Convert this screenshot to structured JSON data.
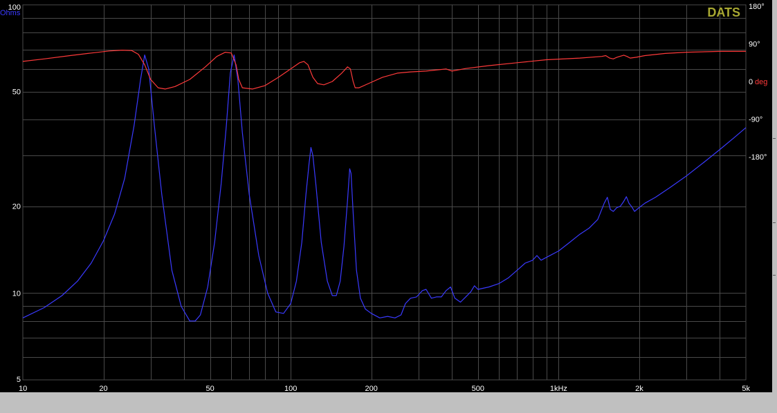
{
  "chart_data": {
    "type": "line",
    "brand": "DATS",
    "x_axis": {
      "scale": "log",
      "range": [
        10,
        5000
      ],
      "tick_labels": [
        {
          "value": 10,
          "label": "10"
        },
        {
          "value": 20,
          "label": "20"
        },
        {
          "value": 50,
          "label": "50"
        },
        {
          "value": 100,
          "label": "100"
        },
        {
          "value": 200,
          "label": "200"
        },
        {
          "value": 500,
          "label": "500"
        },
        {
          "value": 1000,
          "label": "1kHz"
        },
        {
          "value": 2000,
          "label": "2k"
        },
        {
          "value": 5000,
          "label": "5k"
        }
      ]
    },
    "y_left": {
      "scale": "log",
      "range": [
        5,
        100
      ],
      "unit": "Ohms",
      "tick_labels": [
        {
          "value": 100,
          "label": "100"
        },
        {
          "value": 50,
          "label": "50"
        },
        {
          "value": 20,
          "label": "20"
        },
        {
          "value": 10,
          "label": "10"
        },
        {
          "value": 5,
          "label": "5"
        }
      ]
    },
    "y_right": {
      "unit": "deg",
      "tick_labels": [
        {
          "value": 180,
          "label": "180°"
        },
        {
          "value": 90,
          "label": "90°"
        },
        {
          "value": 0,
          "label": "0"
        },
        {
          "value": -90,
          "label": "-90°"
        },
        {
          "value": -180,
          "label": "-180°"
        }
      ]
    },
    "grid": true,
    "colors": {
      "impedance": "#3a3aff",
      "phase": "#ff3a3a",
      "brand": "#a8a832",
      "grid": "#4a4a4a",
      "labels": "#ffffff"
    },
    "series": [
      {
        "key": "impedance",
        "axis": "left",
        "points": [
          [
            10,
            8.2
          ],
          [
            12,
            8.9
          ],
          [
            14,
            9.8
          ],
          [
            16,
            11
          ],
          [
            18,
            12.7
          ],
          [
            20,
            15.2
          ],
          [
            22,
            18.8
          ],
          [
            24,
            25
          ],
          [
            26,
            38
          ],
          [
            27.5,
            55
          ],
          [
            28.5,
            67
          ],
          [
            29.5,
            60
          ],
          [
            31,
            38
          ],
          [
            33,
            22
          ],
          [
            36,
            12
          ],
          [
            39,
            9
          ],
          [
            42,
            8
          ],
          [
            44,
            8
          ],
          [
            46,
            8.4
          ],
          [
            49,
            10.5
          ],
          [
            52,
            15
          ],
          [
            55,
            24
          ],
          [
            57.5,
            38
          ],
          [
            59.5,
            58
          ],
          [
            61.5,
            67
          ],
          [
            63.5,
            55
          ],
          [
            66,
            36
          ],
          [
            70,
            22
          ],
          [
            76,
            13.5
          ],
          [
            82,
            10
          ],
          [
            88,
            8.6
          ],
          [
            94,
            8.5
          ],
          [
            100,
            9.2
          ],
          [
            105,
            11
          ],
          [
            110,
            15
          ],
          [
            114,
            22
          ],
          [
            117,
            28
          ],
          [
            119,
            32
          ],
          [
            121,
            30
          ],
          [
            124,
            24
          ],
          [
            130,
            15
          ],
          [
            137,
            11
          ],
          [
            143,
            9.8
          ],
          [
            148,
            9.8
          ],
          [
            153,
            11
          ],
          [
            158,
            14.5
          ],
          [
            163,
            21
          ],
          [
            166,
            27
          ],
          [
            168,
            26
          ],
          [
            171,
            19
          ],
          [
            176,
            12
          ],
          [
            182,
            9.6
          ],
          [
            190,
            8.8
          ],
          [
            200,
            8.5
          ],
          [
            215,
            8.2
          ],
          [
            230,
            8.3
          ],
          [
            245,
            8.2
          ],
          [
            258,
            8.4
          ],
          [
            268,
            9.2
          ],
          [
            280,
            9.6
          ],
          [
            295,
            9.7
          ],
          [
            310,
            10.2
          ],
          [
            320,
            10.3
          ],
          [
            335,
            9.6
          ],
          [
            350,
            9.7
          ],
          [
            365,
            9.7
          ],
          [
            380,
            10.2
          ],
          [
            395,
            10.5
          ],
          [
            410,
            9.6
          ],
          [
            430,
            9.3
          ],
          [
            450,
            9.7
          ],
          [
            470,
            10.1
          ],
          [
            485,
            10.6
          ],
          [
            500,
            10.3
          ],
          [
            550,
            10.5
          ],
          [
            600,
            10.8
          ],
          [
            650,
            11.3
          ],
          [
            700,
            12
          ],
          [
            750,
            12.7
          ],
          [
            800,
            13
          ],
          [
            830,
            13.5
          ],
          [
            860,
            13
          ],
          [
            900,
            13.3
          ],
          [
            1000,
            14
          ],
          [
            1100,
            15
          ],
          [
            1200,
            16
          ],
          [
            1300,
            16.8
          ],
          [
            1400,
            18
          ],
          [
            1480,
            20.5
          ],
          [
            1520,
            21.5
          ],
          [
            1560,
            19.5
          ],
          [
            1600,
            19.2
          ],
          [
            1650,
            19.8
          ],
          [
            1700,
            20
          ],
          [
            1750,
            20.8
          ],
          [
            1790,
            21.6
          ],
          [
            1830,
            20.5
          ],
          [
            1870,
            20
          ],
          [
            1920,
            19.2
          ],
          [
            2000,
            19.8
          ],
          [
            2100,
            20.5
          ],
          [
            2300,
            21.5
          ],
          [
            2600,
            23.2
          ],
          [
            3000,
            25.5
          ],
          [
            3500,
            28.5
          ],
          [
            4000,
            31.5
          ],
          [
            4500,
            34.5
          ],
          [
            5000,
            37.5
          ]
        ]
      },
      {
        "key": "phase",
        "axis": "right",
        "points": [
          [
            10,
            48
          ],
          [
            12,
            54
          ],
          [
            15,
            62
          ],
          [
            18,
            68
          ],
          [
            21,
            73
          ],
          [
            23.5,
            75
          ],
          [
            25.5,
            74
          ],
          [
            27,
            65
          ],
          [
            28.5,
            40
          ],
          [
            30,
            5
          ],
          [
            32,
            -15
          ],
          [
            34,
            -18
          ],
          [
            37,
            -12
          ],
          [
            42,
            5
          ],
          [
            48,
            35
          ],
          [
            53,
            60
          ],
          [
            57,
            70
          ],
          [
            60,
            68
          ],
          [
            62.5,
            40
          ],
          [
            64,
            5
          ],
          [
            66,
            -15
          ],
          [
            72,
            -18
          ],
          [
            80,
            -10
          ],
          [
            90,
            10
          ],
          [
            100,
            30
          ],
          [
            108,
            45
          ],
          [
            112,
            48
          ],
          [
            116,
            40
          ],
          [
            121,
            10
          ],
          [
            126,
            -5
          ],
          [
            133,
            -8
          ],
          [
            143,
            0
          ],
          [
            155,
            20
          ],
          [
            163,
            35
          ],
          [
            167,
            30
          ],
          [
            171,
            0
          ],
          [
            174,
            -15
          ],
          [
            180,
            -15
          ],
          [
            195,
            -5
          ],
          [
            220,
            10
          ],
          [
            250,
            20
          ],
          [
            280,
            23
          ],
          [
            320,
            25
          ],
          [
            380,
            30
          ],
          [
            400,
            25
          ],
          [
            450,
            31
          ],
          [
            550,
            38
          ],
          [
            700,
            45
          ],
          [
            900,
            52
          ],
          [
            1200,
            56
          ],
          [
            1450,
            60
          ],
          [
            1500,
            62
          ],
          [
            1550,
            56
          ],
          [
            1600,
            54
          ],
          [
            1650,
            58
          ],
          [
            1750,
            63
          ],
          [
            1800,
            60
          ],
          [
            1850,
            56
          ],
          [
            1950,
            58
          ],
          [
            2100,
            62
          ],
          [
            2500,
            67
          ],
          [
            3000,
            70
          ],
          [
            4000,
            72
          ],
          [
            5000,
            72
          ]
        ]
      }
    ]
  }
}
